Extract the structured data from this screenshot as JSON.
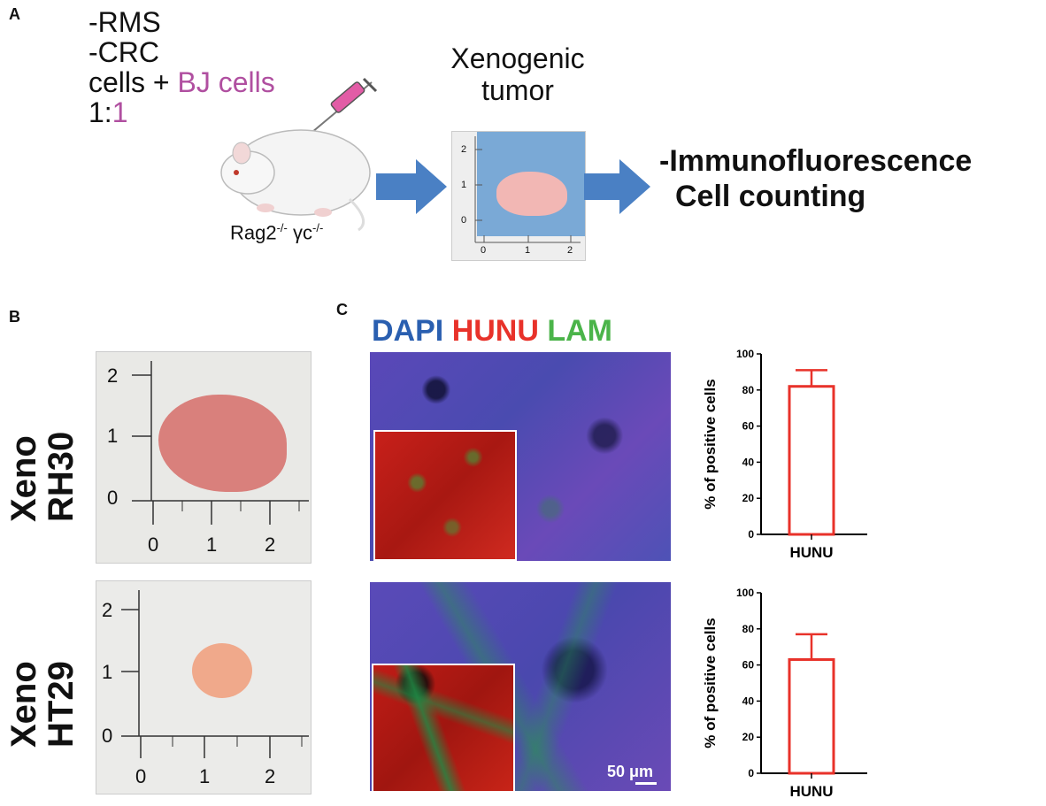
{
  "panel_a": {
    "letter": "A",
    "line1": "-RMS",
    "line2": "-CRC",
    "line3_prefix": "cells + ",
    "line3_pink": "BJ cells",
    "line4_prefix": "1:",
    "line4_pink": "1",
    "mouse_label_main": "Rag2",
    "mouse_label_sup1": "-/-",
    "mouse_label_mid": " γc",
    "mouse_label_sup2": "-/-",
    "xeno_line1": "Xenogenic",
    "xeno_line2": "tumor",
    "ruler_ticks_y": [
      "2",
      "1",
      "0"
    ],
    "ruler_ticks_x": [
      "0",
      "1",
      "2"
    ],
    "readout_line1": "-Immunofluorescence",
    "readout_line2": "Cell counting"
  },
  "panel_b": {
    "letter": "B",
    "row1_label1": "Xeno",
    "row1_label2": "RH30",
    "row2_label1": "Xeno",
    "row2_label2": "HT29",
    "ruler_ticks_y": [
      "2",
      "1",
      "0"
    ],
    "ruler_ticks_x": [
      "0",
      "1",
      "2"
    ]
  },
  "panel_c": {
    "letter": "C",
    "stain_dapi": "DAPI",
    "stain_hunu": "HUNU",
    "stain_lam": "LAM",
    "scale_label": "50 μm"
  },
  "colors": {
    "dapi": "#2a5fb0",
    "hunu": "#e8322a",
    "lam": "#4bb44a",
    "pink": "#b04fa0",
    "arrow": "#4a80c4",
    "bar": "#e8322a"
  },
  "chart_data": [
    {
      "type": "bar",
      "categories": [
        "HUNU"
      ],
      "values": [
        82
      ],
      "error": [
        9
      ],
      "ylabel": "% of positive cells",
      "ylim": [
        0,
        100
      ],
      "yticks": [
        "0",
        "20",
        "40",
        "60",
        "80",
        "100"
      ]
    },
    {
      "type": "bar",
      "categories": [
        "HUNU"
      ],
      "values": [
        63
      ],
      "error": [
        14
      ],
      "ylabel": "% of positive cells",
      "ylim": [
        0,
        100
      ],
      "yticks": [
        "0",
        "20",
        "40",
        "60",
        "80",
        "100"
      ]
    }
  ]
}
